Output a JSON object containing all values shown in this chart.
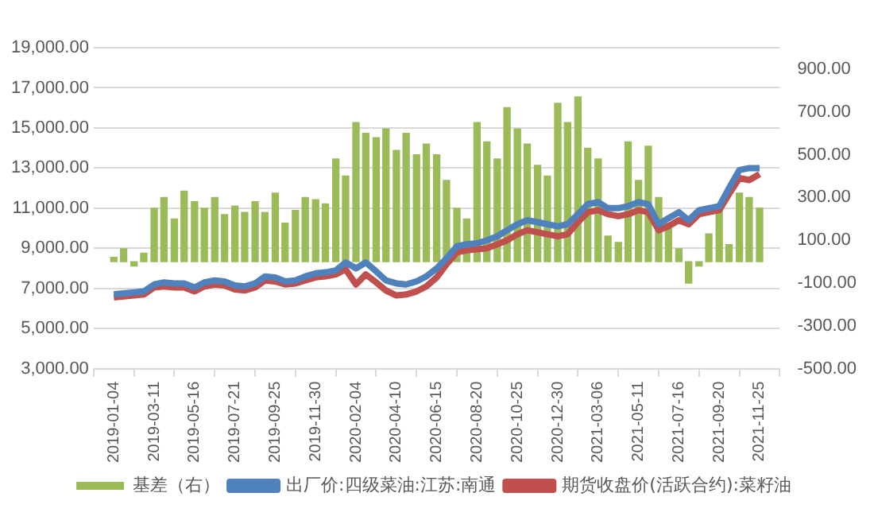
{
  "chart_data": {
    "type": "line",
    "x": [
      "2019-01-04",
      "2019-01-20",
      "2019-02-06",
      "2019-02-22",
      "2019-03-11",
      "2019-03-27",
      "2019-04-13",
      "2019-04-29",
      "2019-05-16",
      "2019-06-01",
      "2019-06-18",
      "2019-07-04",
      "2019-07-21",
      "2019-08-06",
      "2019-08-23",
      "2019-09-08",
      "2019-09-25",
      "2019-10-11",
      "2019-10-28",
      "2019-11-13",
      "2019-11-30",
      "2019-12-16",
      "2020-01-02",
      "2020-01-18",
      "2020-02-04",
      "2020-02-20",
      "2020-03-08",
      "2020-03-24",
      "2020-04-10",
      "2020-04-26",
      "2020-05-13",
      "2020-05-29",
      "2020-06-15",
      "2020-07-01",
      "2020-07-18",
      "2020-08-03",
      "2020-08-20",
      "2020-09-05",
      "2020-09-22",
      "2020-10-08",
      "2020-10-25",
      "2020-11-10",
      "2020-11-27",
      "2020-12-13",
      "2020-12-30",
      "2021-01-15",
      "2021-02-01",
      "2021-02-17",
      "2021-03-06",
      "2021-03-22",
      "2021-04-08",
      "2021-04-24",
      "2021-05-11",
      "2021-05-27",
      "2021-06-13",
      "2021-06-29",
      "2021-07-16",
      "2021-08-01",
      "2021-08-18",
      "2021-09-03",
      "2021-09-20",
      "2021-10-06",
      "2021-10-23",
      "2021-11-08",
      "2021-11-25"
    ],
    "series": [
      {
        "name": "基差（右）",
        "type": "bar",
        "axis": "y2",
        "color": "#9bbb59",
        "values": [
          20,
          60,
          -20,
          40,
          250,
          300,
          200,
          330,
          280,
          250,
          300,
          220,
          260,
          230,
          280,
          230,
          320,
          180,
          240,
          300,
          290,
          270,
          480,
          400,
          650,
          600,
          580,
          620,
          520,
          600,
          500,
          550,
          500,
          380,
          250,
          200,
          650,
          560,
          480,
          720,
          620,
          550,
          450,
          400,
          740,
          650,
          770,
          530,
          480,
          120,
          90,
          560,
          380,
          540,
          300,
          180,
          60,
          -100,
          -20,
          130,
          250,
          80,
          320,
          300,
          250
        ]
      },
      {
        "name": "出厂价:四级菜油:江苏:南通",
        "color": "#4f81bd",
        "values": [
          6700,
          6750,
          6800,
          6850,
          7200,
          7300,
          7250,
          7250,
          7050,
          7300,
          7400,
          7350,
          7150,
          7100,
          7250,
          7600,
          7550,
          7350,
          7400,
          7600,
          7750,
          7800,
          7900,
          8300,
          8000,
          8300,
          7850,
          7400,
          7250,
          7200,
          7350,
          7600,
          8000,
          8500,
          9100,
          9200,
          9250,
          9400,
          9600,
          9900,
          10200,
          10400,
          10300,
          10200,
          10100,
          10200,
          10700,
          11200,
          11300,
          11000,
          11000,
          11100,
          11300,
          11200,
          10200,
          10500,
          10800,
          10400,
          10900,
          11000,
          11100,
          12000,
          12900,
          13000,
          13000
        ]
      },
      {
        "name": "期货收盘价(活跃合约):菜籽油",
        "color": "#c0504d",
        "values": [
          6550,
          6600,
          6650,
          6700,
          7050,
          7100,
          7050,
          7050,
          6850,
          7100,
          7200,
          7150,
          6950,
          6900,
          7050,
          7400,
          7350,
          7200,
          7250,
          7400,
          7550,
          7600,
          7700,
          7950,
          7200,
          7700,
          7300,
          6900,
          6650,
          6700,
          6850,
          7100,
          7550,
          8200,
          8800,
          8900,
          8950,
          9000,
          9200,
          9400,
          9700,
          9900,
          9800,
          9700,
          9600,
          9700,
          10300,
          10800,
          10900,
          10700,
          10600,
          10700,
          10900,
          10800,
          9900,
          10100,
          10400,
          10200,
          10700,
          10800,
          10900,
          11700,
          12500,
          12400,
          12700
        ]
      }
    ],
    "xlim": [
      "2019-01-04",
      "2021-11-25"
    ],
    "xticks": [
      "2019-01-04",
      "2019-03-11",
      "2019-05-16",
      "2019-07-21",
      "2019-09-25",
      "2019-11-30",
      "2020-02-04",
      "2020-04-10",
      "2020-06-15",
      "2020-08-20",
      "2020-10-25",
      "2020-12-30",
      "2021-03-06",
      "2021-05-11",
      "2021-07-16",
      "2021-09-20",
      "2021-11-25"
    ],
    "ylim": [
      3000,
      19000
    ],
    "yticks": [
      {
        "value": 3000,
        "label": "3,000.00"
      },
      {
        "value": 5000,
        "label": "5,000.00"
      },
      {
        "value": 7000,
        "label": "7,000.00"
      },
      {
        "value": 9000,
        "label": "9,000.00"
      },
      {
        "value": 11000,
        "label": "11,000.00"
      },
      {
        "value": 13000,
        "label": "13,000.00"
      },
      {
        "value": 15000,
        "label": "15,000.00"
      },
      {
        "value": 17000,
        "label": "17,000.00"
      },
      {
        "value": 19000,
        "label": "19,000.00"
      }
    ],
    "y2lim": [
      -500,
      1000
    ],
    "y2ticks": [
      {
        "value": -500,
        "label": "-500.00"
      },
      {
        "value": -300,
        "label": "-300.00"
      },
      {
        "value": -100,
        "label": "-100.00"
      },
      {
        "value": 100,
        "label": "100.00"
      },
      {
        "value": 300,
        "label": "300.00"
      },
      {
        "value": 500,
        "label": "500.00"
      },
      {
        "value": 700,
        "label": "700.00"
      },
      {
        "value": 900,
        "label": "900.00"
      }
    ],
    "grid": "y",
    "legend": "bottom",
    "marker": "none",
    "line_style": "solid"
  }
}
